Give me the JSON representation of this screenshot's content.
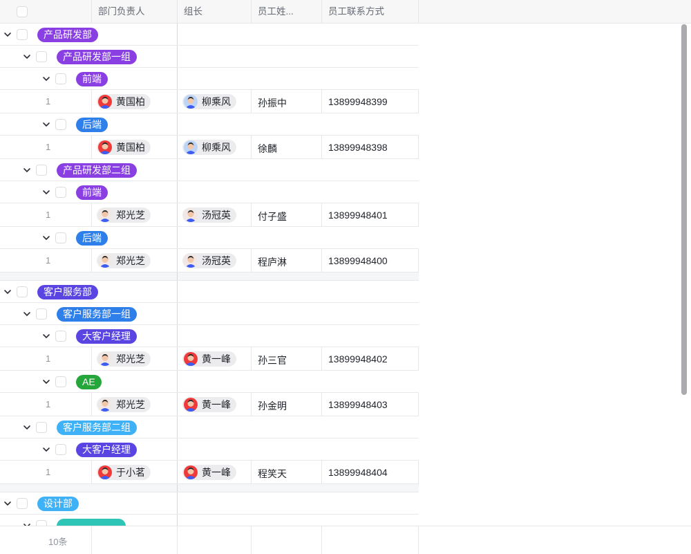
{
  "columns": [
    "部门负责人",
    "组长",
    "员工姓...",
    "员工联系方式"
  ],
  "footer": {
    "count": "10条"
  },
  "colors": {
    "purple": "#8a3fe3",
    "blue": "#2f7fea",
    "indigo": "#5a45e3",
    "sky": "#3fb1f6",
    "green": "#25a63a",
    "teal": "#2ec4b6"
  },
  "rows": [
    {
      "type": "group",
      "level": 0,
      "label": "产品研发部",
      "color": "purple"
    },
    {
      "type": "group",
      "level": 1,
      "label": "产品研发部一组",
      "color": "purple"
    },
    {
      "type": "group",
      "level": 2,
      "label": "前端",
      "color": "purple"
    },
    {
      "type": "data",
      "index": "1",
      "head": {
        "name": "黄国柏",
        "avatar": "red"
      },
      "lead": {
        "name": "柳乘风",
        "avatar": "blue"
      },
      "employee": "孙振中",
      "phone": "13899948399"
    },
    {
      "type": "group",
      "level": 2,
      "label": "后端",
      "color": "blue"
    },
    {
      "type": "data",
      "index": "1",
      "head": {
        "name": "黄国柏",
        "avatar": "red"
      },
      "lead": {
        "name": "柳乘风",
        "avatar": "blue"
      },
      "employee": "徐麟",
      "phone": "13899948398"
    },
    {
      "type": "group",
      "level": 1,
      "label": "产品研发部二组",
      "color": "purple"
    },
    {
      "type": "group",
      "level": 2,
      "label": "前端",
      "color": "purple"
    },
    {
      "type": "data",
      "index": "1",
      "head": {
        "name": "郑光芝",
        "avatar": "light"
      },
      "lead": {
        "name": "汤冠英",
        "avatar": "light"
      },
      "employee": "付子盛",
      "phone": "13899948401"
    },
    {
      "type": "group",
      "level": 2,
      "label": "后端",
      "color": "blue"
    },
    {
      "type": "data",
      "index": "1",
      "head": {
        "name": "郑光芝",
        "avatar": "light"
      },
      "lead": {
        "name": "汤冠英",
        "avatar": "light"
      },
      "employee": "程庐淋",
      "phone": "13899948400"
    },
    {
      "type": "spacer"
    },
    {
      "type": "group",
      "level": 0,
      "label": "客户服务部",
      "color": "indigo"
    },
    {
      "type": "group",
      "level": 1,
      "label": "客户服务部一组",
      "color": "blue"
    },
    {
      "type": "group",
      "level": 2,
      "label": "大客户经理",
      "color": "indigo"
    },
    {
      "type": "data",
      "index": "1",
      "head": {
        "name": "郑光芝",
        "avatar": "light"
      },
      "lead": {
        "name": "黄一峰",
        "avatar": "red"
      },
      "employee": "孙三官",
      "phone": "13899948402"
    },
    {
      "type": "group",
      "level": 2,
      "label": "AE",
      "color": "green"
    },
    {
      "type": "data",
      "index": "1",
      "head": {
        "name": "郑光芝",
        "avatar": "light"
      },
      "lead": {
        "name": "黄一峰",
        "avatar": "red"
      },
      "employee": "孙金明",
      "phone": "13899948403"
    },
    {
      "type": "group",
      "level": 1,
      "label": "客户服务部二组",
      "color": "sky"
    },
    {
      "type": "group",
      "level": 2,
      "label": "大客户经理",
      "color": "indigo"
    },
    {
      "type": "data",
      "index": "1",
      "head": {
        "name": "于小茗",
        "avatar": "red"
      },
      "lead": {
        "name": "黄一峰",
        "avatar": "red"
      },
      "employee": "程笑天",
      "phone": "13899948404"
    },
    {
      "type": "spacer"
    },
    {
      "type": "group",
      "level": 0,
      "label": "设计部",
      "color": "sky"
    },
    {
      "type": "group",
      "level": 1,
      "label": "",
      "color": "teal"
    }
  ]
}
